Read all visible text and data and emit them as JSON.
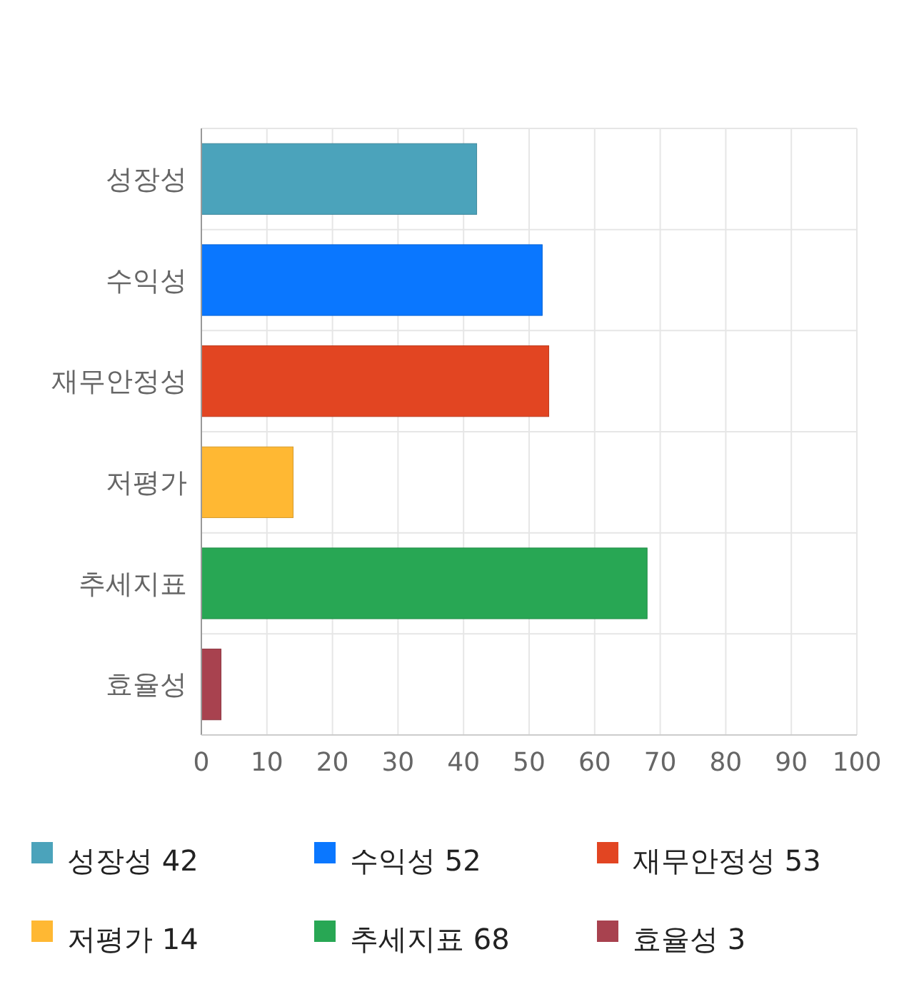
{
  "chart_data": {
    "type": "bar",
    "orientation": "horizontal",
    "stacked": true,
    "categories": [
      "성장성",
      "수익성",
      "재무안정성",
      "저평가",
      "추세지표",
      "효율성"
    ],
    "series": [
      {
        "name": "성장성 42",
        "color": "#4ba3bb",
        "values": [
          42,
          null,
          null,
          null,
          null,
          null
        ]
      },
      {
        "name": "수익성 52",
        "color": "#0a77ff",
        "values": [
          null,
          52,
          null,
          null,
          null,
          null
        ]
      },
      {
        "name": "재무안정성 53",
        "color": "#e24522",
        "values": [
          null,
          null,
          53,
          null,
          null,
          null
        ]
      },
      {
        "name": "저평가 14",
        "color": "#ffb833",
        "values": [
          null,
          null,
          null,
          14,
          null,
          null
        ]
      },
      {
        "name": "추세지표 68",
        "color": "#28a754",
        "values": [
          null,
          null,
          null,
          null,
          68,
          null
        ]
      },
      {
        "name": "효율성 3",
        "color": "#a8424f",
        "values": [
          null,
          null,
          null,
          null,
          null,
          3
        ]
      }
    ],
    "xlim": [
      0,
      100
    ],
    "xticks": [
      0,
      10,
      20,
      30,
      40,
      50,
      60,
      70,
      80,
      90,
      100
    ],
    "grid": true,
    "legend": "bottom"
  }
}
